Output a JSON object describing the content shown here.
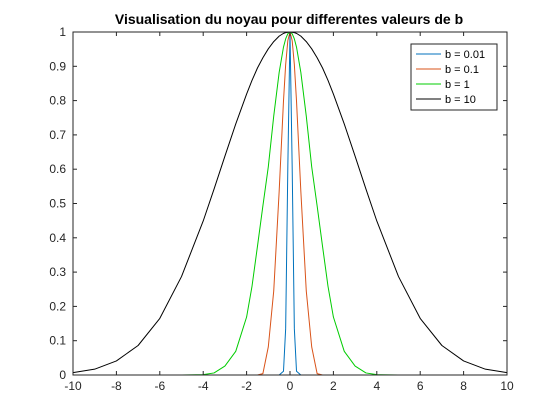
{
  "chart_data": {
    "type": "line",
    "title": "Visualisation du noyau pour differentes valeurs de b",
    "xlabel": "",
    "ylabel": "",
    "xlim": [
      -10,
      10
    ],
    "ylim": [
      0,
      1
    ],
    "xticks": [
      -10,
      -8,
      -6,
      -4,
      -2,
      0,
      2,
      4,
      6,
      8,
      10
    ],
    "xtick_labels": [
      "-10",
      "-8",
      "-6",
      "-4",
      "-2",
      "0",
      "2",
      "4",
      "6",
      "8",
      "10"
    ],
    "yticks": [
      0,
      0.1,
      0.2,
      0.3,
      0.4,
      0.5,
      0.6,
      0.7,
      0.8,
      0.9,
      1
    ],
    "ytick_labels": [
      "0",
      "0.1",
      "0.2",
      "0.3",
      "0.4",
      "0.5",
      "0.6",
      "0.7",
      "0.8",
      "0.9",
      "1"
    ],
    "grid": false,
    "legend_position": "top-right",
    "x": [
      -10,
      -9,
      -8,
      -7,
      -6,
      -5,
      -4,
      -3.5,
      -3,
      -2.5,
      -2,
      -1.75,
      -1.5,
      -1.25,
      -1,
      -0.75,
      -0.5,
      -0.3,
      -0.2,
      -0.1,
      0,
      0.1,
      0.2,
      0.3,
      0.5,
      0.75,
      1,
      1.25,
      1.5,
      1.75,
      2,
      2.5,
      3,
      3.5,
      4,
      5,
      6,
      7,
      8,
      9,
      10
    ],
    "series": [
      {
        "name": "b = 0.01",
        "color": "#0072BD",
        "values": [
          0,
          0,
          0,
          0,
          0,
          0,
          0,
          0,
          0,
          0,
          0,
          0,
          0,
          0,
          0,
          0,
          0,
          0.011,
          0.135,
          0.607,
          1,
          0.607,
          0.135,
          0.011,
          0,
          0,
          0,
          0,
          0,
          0,
          0,
          0,
          0,
          0,
          0,
          0,
          0,
          0,
          0,
          0,
          0
        ]
      },
      {
        "name": "b = 0.1",
        "color": "#D95319",
        "values": [
          0,
          0,
          0,
          0,
          0,
          0,
          0,
          0,
          0,
          0,
          0,
          0,
          0,
          0.004,
          0.082,
          0.245,
          0.535,
          0.799,
          0.905,
          0.975,
          1,
          0.975,
          0.905,
          0.799,
          0.535,
          0.245,
          0.082,
          0.004,
          0,
          0,
          0,
          0,
          0,
          0,
          0,
          0,
          0,
          0,
          0,
          0,
          0
        ]
      },
      {
        "name": "b = 1",
        "color": "#00CC00",
        "values": [
          0,
          0,
          0,
          0,
          0,
          0,
          0.001,
          0.006,
          0.026,
          0.069,
          0.169,
          0.259,
          0.375,
          0.493,
          0.607,
          0.755,
          0.882,
          0.956,
          0.98,
          0.995,
          1,
          0.995,
          0.98,
          0.956,
          0.882,
          0.755,
          0.607,
          0.493,
          0.375,
          0.259,
          0.169,
          0.069,
          0.026,
          0.006,
          0.001,
          0,
          0,
          0,
          0,
          0,
          0
        ]
      },
      {
        "name": "b = 10",
        "color": "#000000",
        "values": [
          0.007,
          0.017,
          0.041,
          0.086,
          0.165,
          0.287,
          0.449,
          0.542,
          0.638,
          0.732,
          0.819,
          0.859,
          0.895,
          0.925,
          0.951,
          0.972,
          0.988,
          0.996,
          0.998,
          0.999,
          1,
          0.999,
          0.998,
          0.996,
          0.988,
          0.972,
          0.951,
          0.925,
          0.895,
          0.859,
          0.819,
          0.732,
          0.638,
          0.542,
          0.449,
          0.287,
          0.165,
          0.086,
          0.041,
          0.017,
          0.007
        ]
      }
    ]
  }
}
